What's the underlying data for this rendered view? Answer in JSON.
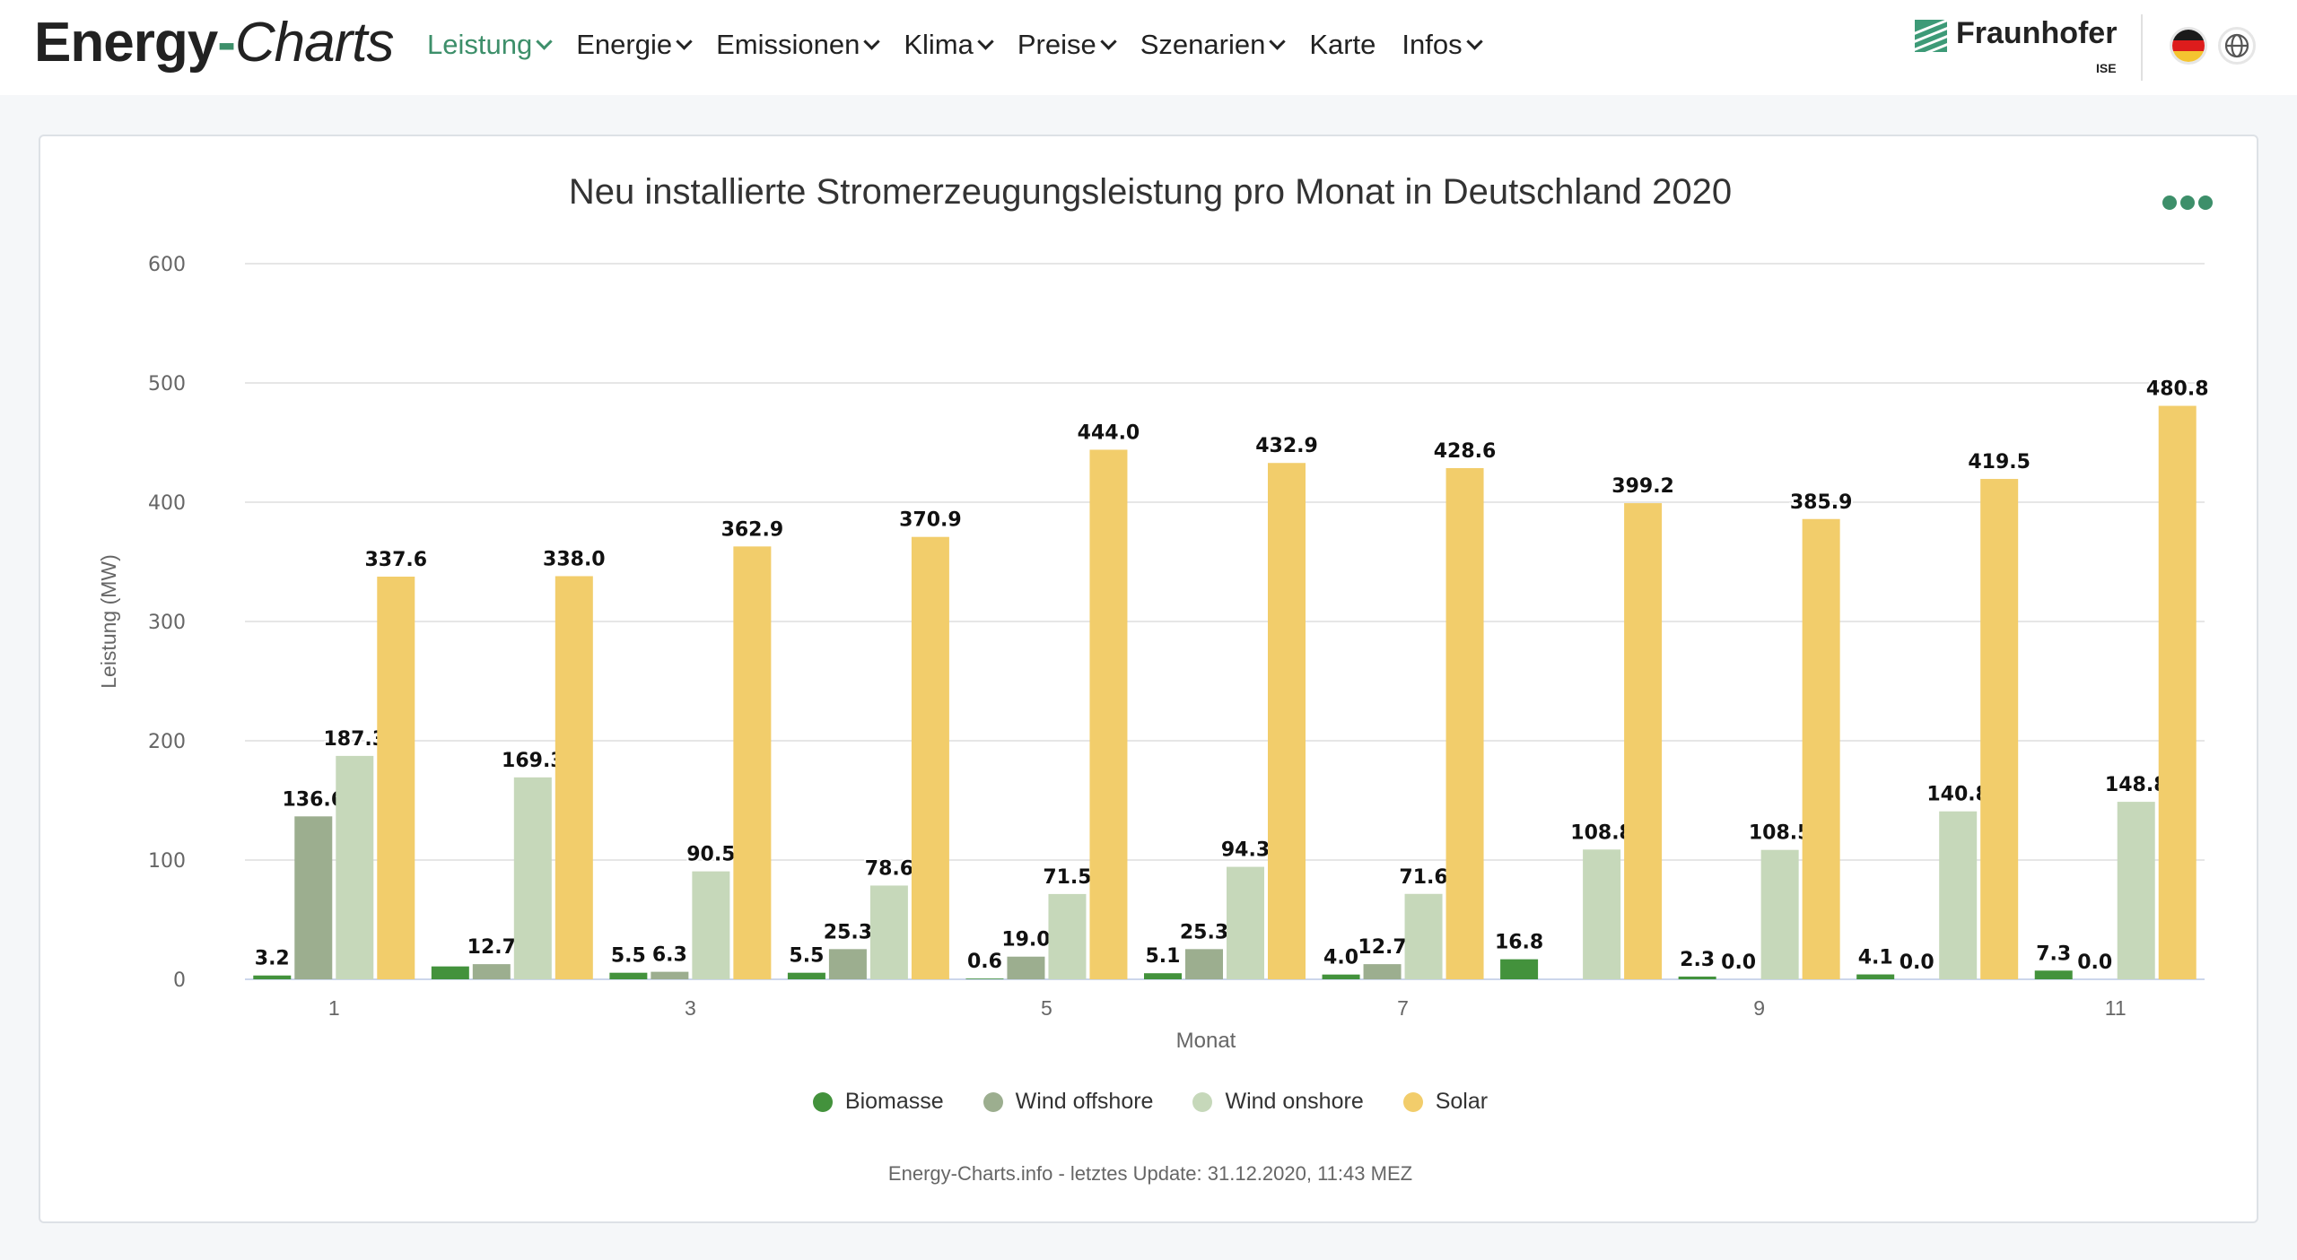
{
  "header": {
    "logo_part1": "Energy",
    "logo_dash": "-",
    "logo_part2": "Charts",
    "nav": [
      {
        "label": "Leistung",
        "has_dropdown": true,
        "active": true
      },
      {
        "label": "Energie",
        "has_dropdown": true,
        "active": false
      },
      {
        "label": "Emissionen",
        "has_dropdown": true,
        "active": false
      },
      {
        "label": "Klima",
        "has_dropdown": true,
        "active": false
      },
      {
        "label": "Preise",
        "has_dropdown": true,
        "active": false
      },
      {
        "label": "Szenarien",
        "has_dropdown": true,
        "active": false
      },
      {
        "label": "Karte",
        "has_dropdown": false,
        "active": false
      },
      {
        "label": "Infos",
        "has_dropdown": true,
        "active": false
      }
    ],
    "partner_name": "Fraunhofer",
    "partner_sub": "ISE",
    "language_icon": "germany-flag-icon",
    "globe_icon": "globe-icon",
    "accent_color": "#3d8f6a"
  },
  "chart_menu_icon": "more-dots-icon",
  "credits": "Energy-Charts.info - letztes Update: 31.12.2020, 11:43 MEZ",
  "chart_data": {
    "type": "bar",
    "title": "Neu installierte Stromerzeugungsleistung pro Monat in Deutschland 2020",
    "xlabel": "Monat",
    "ylabel": "Leistung (MW)",
    "ylim": [
      0,
      600
    ],
    "yticks": [
      0,
      100,
      200,
      300,
      400,
      500,
      600
    ],
    "categories": [
      1,
      2,
      3,
      4,
      5,
      6,
      7,
      8,
      9,
      10,
      11
    ],
    "xtick_labels": [
      "1",
      "",
      "3",
      "",
      "5",
      "",
      "7",
      "",
      "9",
      "",
      "11"
    ],
    "grid": true,
    "legend_position": "bottom-center",
    "series": [
      {
        "name": "Biomasse",
        "color": "#43923c",
        "values": [
          3.2,
          10.8,
          5.5,
          5.5,
          0.6,
          5.1,
          4.0,
          16.8,
          2.3,
          4.1,
          7.3
        ],
        "labels": [
          "3.2",
          "",
          "5.5",
          "5.5",
          "0.6",
          "5.1",
          "4.0",
          "16.8",
          "2.3",
          "4.1",
          "7.3"
        ]
      },
      {
        "name": "Wind offshore",
        "color": "#9cae8f",
        "values": [
          136.6,
          12.7,
          6.3,
          25.3,
          19.0,
          25.3,
          12.7,
          null,
          0.0,
          0.0,
          0.0
        ],
        "labels": [
          "136.6",
          "12.7",
          "6.3",
          "25.3",
          "19.0",
          "25.3",
          "12.7",
          "",
          "0.0",
          "0.0",
          "0.0"
        ]
      },
      {
        "name": "Wind onshore",
        "color": "#c6d8ba",
        "values": [
          187.3,
          169.3,
          90.5,
          78.6,
          71.5,
          94.3,
          71.6,
          108.8,
          108.5,
          140.8,
          148.8
        ],
        "labels": [
          "187.3",
          "169.3",
          "90.5",
          "78.6",
          "71.5",
          "94.3",
          "71.6",
          "108.8",
          "108.5",
          "140.8",
          "148.8"
        ]
      },
      {
        "name": "Solar",
        "color": "#f2cd6b",
        "values": [
          337.6,
          338.0,
          362.9,
          370.9,
          444.0,
          432.9,
          428.6,
          399.2,
          385.9,
          419.5,
          480.8
        ],
        "labels": [
          "337.6",
          "338.0",
          "362.9",
          "370.9",
          "444.0",
          "432.9",
          "428.6",
          "399.2",
          "385.9",
          "419.5",
          "480.8"
        ]
      }
    ]
  }
}
